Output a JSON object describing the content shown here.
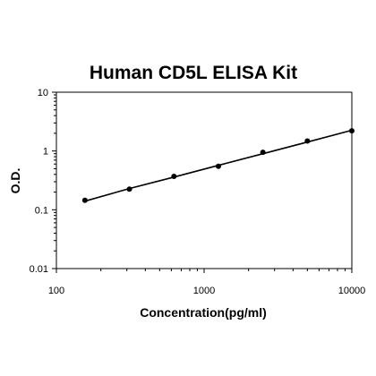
{
  "chart_data": {
    "type": "scatter",
    "title": "Human CD5L ELISA Kit",
    "xlabel": "Concentration(pg/ml)",
    "ylabel": "O.D.",
    "x_scale": "log",
    "y_scale": "log",
    "xlim": [
      100,
      10000
    ],
    "ylim": [
      0.01,
      10
    ],
    "x_ticks": [
      "100",
      "1000",
      "10000"
    ],
    "y_ticks": [
      "0.01",
      "0.1",
      "1",
      "10"
    ],
    "grid": false,
    "legend": "none",
    "series": [
      {
        "points": [
          {
            "x": 156,
            "y": 0.145
          },
          {
            "x": 312,
            "y": 0.225
          },
          {
            "x": 625,
            "y": 0.37
          },
          {
            "x": 1250,
            "y": 0.55
          },
          {
            "x": 2500,
            "y": 0.95
          },
          {
            "x": 5000,
            "y": 1.48
          },
          {
            "x": 10000,
            "y": 2.2
          }
        ],
        "fit": [
          {
            "x": 156,
            "y": 0.14
          },
          {
            "x": 312,
            "y": 0.23
          },
          {
            "x": 625,
            "y": 0.36
          },
          {
            "x": 1250,
            "y": 0.57
          },
          {
            "x": 2500,
            "y": 0.9
          },
          {
            "x": 5000,
            "y": 1.42
          },
          {
            "x": 10000,
            "y": 2.25
          }
        ]
      }
    ]
  },
  "colors": {
    "axis": "#000000",
    "line": "#000000",
    "marker": "#000000"
  }
}
